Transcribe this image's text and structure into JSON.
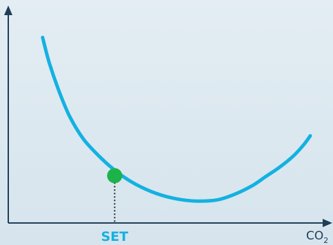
{
  "chart_data": {
    "type": "line",
    "title": "",
    "xlabel": {
      "main": "CO",
      "sub": "2"
    },
    "ylabel": "",
    "grid": false,
    "legend": "none",
    "series": [
      {
        "name": "",
        "color": "#14b1e1",
        "x": [
          0.5,
          0.7,
          1.0,
          1.3,
          1.7,
          2.2,
          2.7,
          3.2,
          3.8,
          4.4,
          5.0,
          5.6,
          6.1,
          6.6,
          7.0,
          7.4,
          7.8,
          8.1,
          8.3
        ],
        "y": [
          10.0,
          8.6,
          7.0,
          5.7,
          4.5,
          3.5,
          2.7,
          2.1,
          1.6,
          1.3,
          1.18,
          1.25,
          1.55,
          2.0,
          2.5,
          3.0,
          3.6,
          4.2,
          4.7
        ]
      }
    ],
    "markers": [
      {
        "name": "set-point",
        "x": 2.6,
        "y": 2.55,
        "color": "#1db34b"
      }
    ],
    "x_ticks": [
      {
        "value": 2.6,
        "label": "SET",
        "color": "#14b1e1"
      }
    ],
    "xlim": [
      -0.5,
      8.7
    ],
    "ylim": [
      0,
      11.2
    ],
    "colors": {
      "axis": "#1f3d57",
      "leader_line": "#222222",
      "axis_label": "#1f3d57"
    }
  }
}
